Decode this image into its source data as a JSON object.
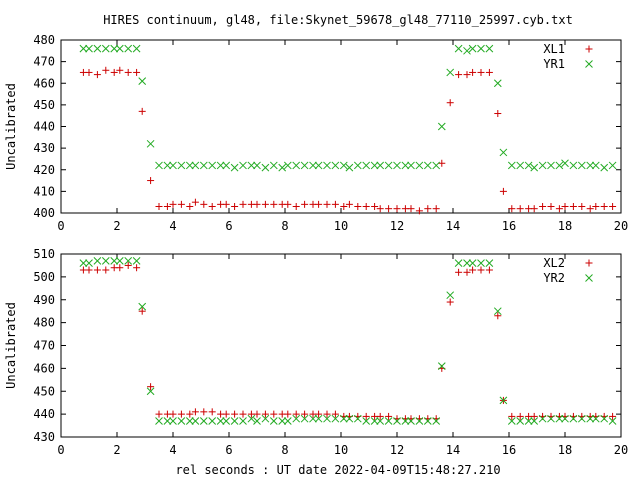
{
  "figure": {
    "title": "HIRES continuum, gl48, file:Skynet_59678_gl48_77110_25997.cyb.txt",
    "xlabel": "rel seconds : UT date 2022-04-09T15:48:27.210"
  },
  "colors": {
    "series_a": "#cc0000",
    "series_b": "#22aa22",
    "axis": "#000000"
  },
  "chart_data": [
    {
      "type": "scatter",
      "ylabel": "Uncalibrated",
      "xlim": [
        0,
        20
      ],
      "ylim": [
        400,
        480
      ],
      "xticks": [
        0,
        2,
        4,
        6,
        8,
        10,
        12,
        14,
        16,
        18,
        20
      ],
      "yticks": [
        400,
        410,
        420,
        430,
        440,
        450,
        460,
        470,
        480
      ],
      "grid": false,
      "legend_position": "top-right",
      "x": [
        0.8,
        1.0,
        1.3,
        1.6,
        1.9,
        2.1,
        2.4,
        2.7,
        2.9,
        3.2,
        3.5,
        3.8,
        4.0,
        4.3,
        4.6,
        4.8,
        5.1,
        5.4,
        5.7,
        5.9,
        6.2,
        6.5,
        6.8,
        7.0,
        7.3,
        7.6,
        7.9,
        8.1,
        8.4,
        8.7,
        9.0,
        9.2,
        9.5,
        9.8,
        10.1,
        10.3,
        10.6,
        10.9,
        11.2,
        11.4,
        11.7,
        12.0,
        12.3,
        12.5,
        12.8,
        13.1,
        13.4,
        13.6,
        13.9,
        14.2,
        14.5,
        14.7,
        15.0,
        15.3,
        15.6,
        15.8,
        16.1,
        16.4,
        16.7,
        16.9,
        17.2,
        17.5,
        17.8,
        18.0,
        18.3,
        18.6,
        18.9,
        19.1,
        19.4,
        19.7
      ],
      "series": [
        {
          "name": "XL1",
          "marker": "plus",
          "color": "#cc0000",
          "values": [
            465,
            465,
            464,
            466,
            465,
            466,
            465,
            465,
            447,
            415,
            403,
            403,
            404,
            404,
            403,
            405,
            404,
            403,
            404,
            404,
            403,
            404,
            404,
            404,
            404,
            404,
            404,
            404,
            403,
            404,
            404,
            404,
            404,
            404,
            403,
            404,
            403,
            403,
            403,
            402,
            402,
            402,
            402,
            402,
            401,
            402,
            402,
            423,
            451,
            464,
            464,
            465,
            465,
            465,
            446,
            410,
            402,
            402,
            402,
            402,
            403,
            403,
            402,
            403,
            403,
            403,
            402,
            403,
            403,
            403
          ]
        },
        {
          "name": "YR1",
          "marker": "cross",
          "color": "#22aa22",
          "values": [
            476,
            476,
            476,
            476,
            476,
            476,
            476,
            476,
            461,
            432,
            422,
            422,
            422,
            422,
            422,
            422,
            422,
            422,
            422,
            422,
            421,
            422,
            422,
            422,
            421,
            422,
            421,
            422,
            422,
            422,
            422,
            422,
            422,
            422,
            422,
            421,
            422,
            422,
            422,
            422,
            422,
            422,
            422,
            422,
            422,
            422,
            422,
            440,
            465,
            476,
            475,
            476,
            476,
            476,
            460,
            428,
            422,
            422,
            422,
            421,
            422,
            422,
            422,
            423,
            422,
            422,
            422,
            422,
            421,
            422
          ]
        }
      ]
    },
    {
      "type": "scatter",
      "ylabel": "Uncalibrated",
      "xlim": [
        0,
        20
      ],
      "ylim": [
        430,
        510
      ],
      "xticks": [
        0,
        2,
        4,
        6,
        8,
        10,
        12,
        14,
        16,
        18,
        20
      ],
      "yticks": [
        430,
        440,
        450,
        460,
        470,
        480,
        490,
        500,
        510
      ],
      "grid": false,
      "legend_position": "top-right",
      "x": [
        0.8,
        1.0,
        1.3,
        1.6,
        1.9,
        2.1,
        2.4,
        2.7,
        2.9,
        3.2,
        3.5,
        3.8,
        4.0,
        4.3,
        4.6,
        4.8,
        5.1,
        5.4,
        5.7,
        5.9,
        6.2,
        6.5,
        6.8,
        7.0,
        7.3,
        7.6,
        7.9,
        8.1,
        8.4,
        8.7,
        9.0,
        9.2,
        9.5,
        9.8,
        10.1,
        10.3,
        10.6,
        10.9,
        11.2,
        11.4,
        11.7,
        12.0,
        12.3,
        12.5,
        12.8,
        13.1,
        13.4,
        13.6,
        13.9,
        14.2,
        14.5,
        14.7,
        15.0,
        15.3,
        15.6,
        15.8,
        16.1,
        16.4,
        16.7,
        16.9,
        17.2,
        17.5,
        17.8,
        18.0,
        18.3,
        18.6,
        18.9,
        19.1,
        19.4,
        19.7
      ],
      "series": [
        {
          "name": "XL2",
          "marker": "plus",
          "color": "#cc0000",
          "values": [
            503,
            503,
            503,
            503,
            504,
            504,
            505,
            504,
            485,
            452,
            440,
            440,
            440,
            440,
            440,
            441,
            441,
            441,
            440,
            440,
            440,
            440,
            440,
            440,
            440,
            440,
            440,
            440,
            440,
            440,
            440,
            440,
            440,
            440,
            439,
            439,
            439,
            439,
            439,
            439,
            439,
            438,
            438,
            438,
            438,
            438,
            438,
            460,
            489,
            502,
            502,
            503,
            503,
            503,
            483,
            446,
            439,
            439,
            439,
            439,
            439,
            439,
            439,
            439,
            439,
            439,
            439,
            439,
            439,
            439
          ]
        },
        {
          "name": "YR2",
          "marker": "cross",
          "color": "#22aa22",
          "values": [
            506,
            506,
            507,
            507,
            507,
            507,
            507,
            507,
            487,
            450,
            437,
            437,
            437,
            437,
            437,
            437,
            437,
            437,
            437,
            437,
            437,
            437,
            438,
            437,
            438,
            437,
            437,
            437,
            438,
            438,
            438,
            438,
            438,
            438,
            438,
            438,
            438,
            437,
            437,
            437,
            437,
            437,
            437,
            437,
            437,
            437,
            437,
            461,
            492,
            506,
            506,
            506,
            506,
            506,
            485,
            446,
            437,
            437,
            437,
            437,
            438,
            438,
            438,
            438,
            438,
            438,
            438,
            438,
            438,
            437
          ]
        }
      ]
    }
  ]
}
